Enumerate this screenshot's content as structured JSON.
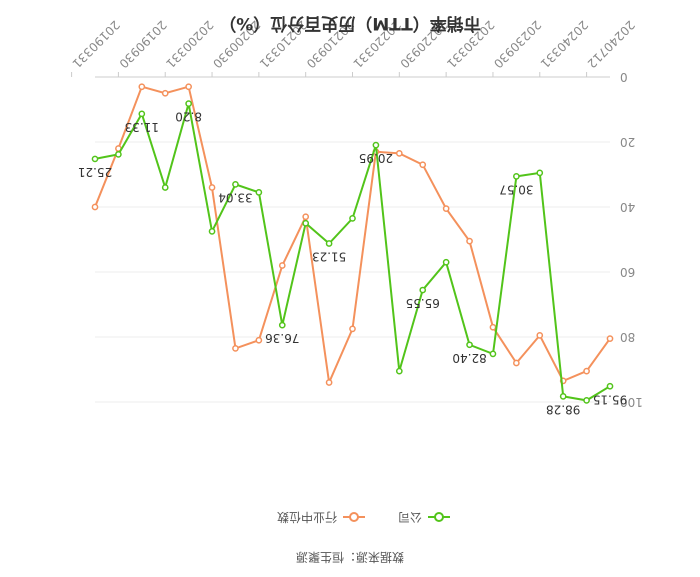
{
  "chart_data": {
    "type": "line",
    "title": "市销率（TTM）历史百分位（%）",
    "source": "数据来源：恒生聚源",
    "ylim": [
      0,
      100
    ],
    "y_ticks": [
      "0",
      "20",
      "40",
      "60",
      "80",
      "100"
    ],
    "x_tick_labels": [
      "20240712",
      "20240331",
      "20230930",
      "20230331",
      "20220930",
      "20220331",
      "20210930",
      "20210331",
      "20200930",
      "20200331",
      "20190930",
      "20190331"
    ],
    "grid": true,
    "legend_position": "bottom",
    "series": [
      {
        "name": "公司",
        "color": "#52c41a",
        "values": [
          95.15,
          99.5,
          98.28,
          29.5,
          30.57,
          85.2,
          82.4,
          57,
          65.55,
          90.5,
          20.95,
          43.5,
          51.23,
          45,
          76.36,
          35.5,
          33.04,
          47.5,
          8.2,
          34,
          11.33,
          23.8,
          25.21
        ]
      },
      {
        "name": "行业中位数",
        "color": "#f4915c",
        "values": [
          80.5,
          90.5,
          93.5,
          79.5,
          88,
          77,
          50.5,
          40.5,
          27,
          23.5,
          23,
          77.5,
          94,
          43,
          58,
          81,
          83.5,
          34,
          3,
          5,
          3,
          22,
          40
        ]
      }
    ],
    "data_labels": [
      {
        "series": 0,
        "index": 0,
        "text": "95.15"
      },
      {
        "series": 0,
        "index": 2,
        "text": "98.28"
      },
      {
        "series": 0,
        "index": 4,
        "text": "30.57"
      },
      {
        "series": 0,
        "index": 6,
        "text": "82.40"
      },
      {
        "series": 0,
        "index": 8,
        "text": "65.55"
      },
      {
        "series": 0,
        "index": 10,
        "text": "20.95"
      },
      {
        "series": 0,
        "index": 12,
        "text": "51.23"
      },
      {
        "series": 0,
        "index": 14,
        "text": "76.36"
      },
      {
        "series": 0,
        "index": 16,
        "text": "33.04"
      },
      {
        "series": 0,
        "index": 18,
        "text": "8.20"
      },
      {
        "series": 0,
        "index": 20,
        "text": "11.33"
      },
      {
        "series": 0,
        "index": 22,
        "text": "25.21"
      }
    ]
  }
}
